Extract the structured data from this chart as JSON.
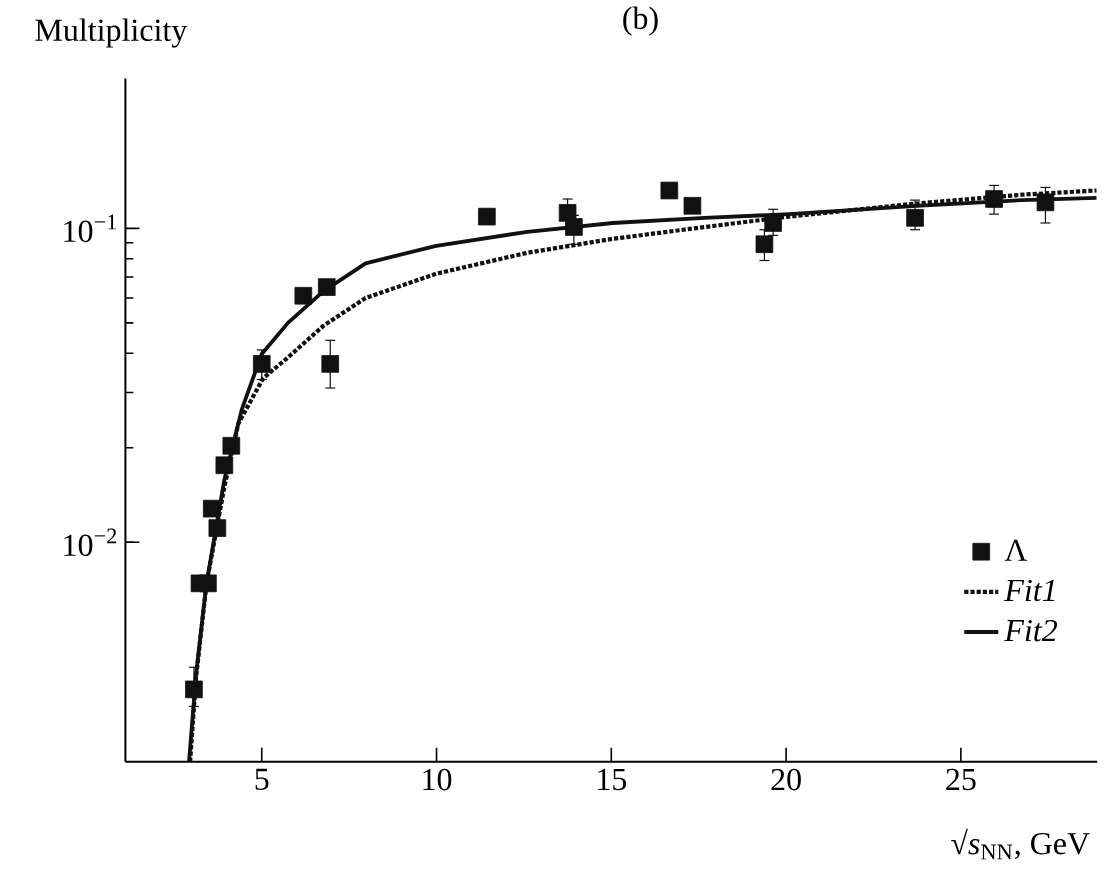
{
  "chart_data": {
    "type": "scatter",
    "title": "(b)",
    "ylabel": "Multiplicity",
    "xlabel": "√*s*$_{NN}$, GeV",
    "log": "y",
    "legend": "bottom right",
    "xlim": [
      1.1,
      28.9
    ],
    "xticks": [
      5,
      10,
      15,
      20,
      25
    ],
    "ylim": [
      0.002,
      0.3
    ],
    "yticks": [
      {
        "value": 0.01,
        "label": "10$^{−2}$"
      },
      {
        "value": 0.1,
        "label": "10$^{−1}$"
      }
    ],
    "series": [
      {
        "name": "Λ",
        "marker": "square",
        "color": "#111111",
        "x": [
          3.06,
          3.22,
          3.46,
          3.57,
          3.73,
          3.93,
          4.13,
          5.0,
          6.19,
          6.66,
          6.86,
          6.96,
          11.44,
          13.75,
          13.93,
          16.66,
          17.32,
          19.38,
          19.63,
          23.69,
          25.95,
          27.42
        ],
        "values": [
          0.0034,
          0.0074,
          0.0074,
          0.0128,
          0.0111,
          0.0176,
          0.0203,
          0.037,
          0.061,
          null,
          0.065,
          0.037,
          0.109,
          0.112,
          0.101,
          0.132,
          0.118,
          0.089,
          0.104,
          0.108,
          0.124,
          0.121
        ],
        "errors": [
          [
            0.003,
            0.004
          ],
          null,
          null,
          null,
          null,
          null,
          null,
          [
            0.033,
            0.041
          ],
          null,
          null,
          null,
          [
            0.031,
            0.044
          ],
          null,
          [
            0.1,
            0.124
          ],
          [
            0.089,
            0.11
          ],
          null,
          null,
          [
            0.079,
            0.099
          ],
          [
            0.095,
            0.115
          ],
          [
            0.099,
            0.123
          ],
          [
            0.111,
            0.137
          ],
          [
            0.104,
            0.135
          ]
        ]
      },
      {
        "name": "Fit1",
        "type": "line",
        "line_style": "dotted",
        "marker": "none",
        "color": "#111111",
        "x": [
          2.95,
          3.12,
          3.42,
          3.93,
          4.33,
          5.04,
          5.75,
          6.76,
          7.97,
          9.99,
          12.6,
          15.04,
          17.67,
          20.09,
          23.73,
          26.76,
          28.88
        ],
        "values": [
          0.002,
          0.0037,
          0.0074,
          0.015,
          0.0239,
          0.0333,
          0.0388,
          0.0489,
          0.06,
          0.0717,
          0.0836,
          0.0926,
          0.101,
          0.109,
          0.12,
          0.128,
          0.132
        ]
      },
      {
        "name": "Fit2",
        "type": "line",
        "line_style": "solid",
        "marker": "none",
        "color": "#111111",
        "x": [
          2.92,
          3.12,
          3.42,
          3.93,
          4.43,
          5.0,
          5.75,
          6.76,
          7.97,
          9.99,
          12.6,
          15.04,
          17.67,
          20.09,
          23.73,
          26.76,
          28.88
        ],
        "values": [
          0.002,
          0.0038,
          0.0074,
          0.0158,
          0.0265,
          0.0398,
          0.05,
          0.063,
          0.0774,
          0.088,
          0.0975,
          0.104,
          0.108,
          0.111,
          0.118,
          0.123,
          0.125
        ]
      }
    ]
  }
}
